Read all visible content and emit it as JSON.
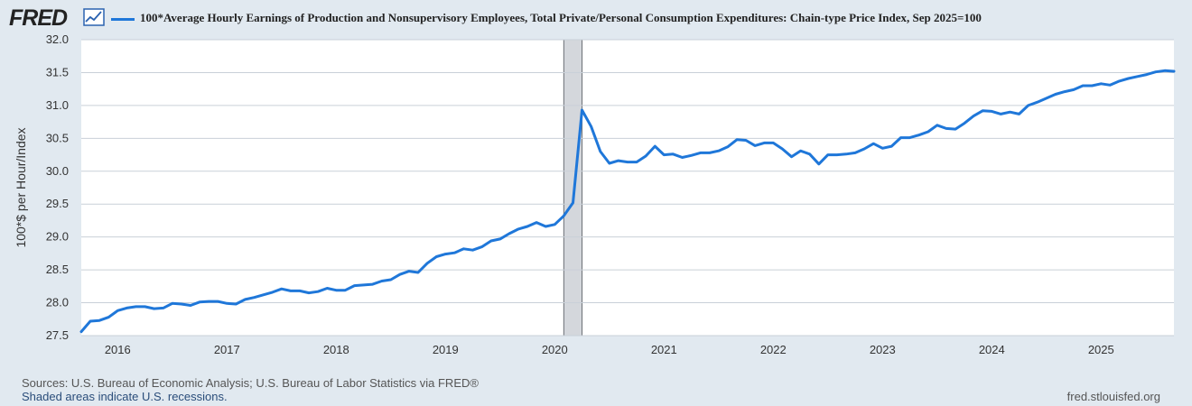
{
  "header": {
    "logo_text": "FRED",
    "legend_label": "100*Average Hourly Earnings of Production and Nonsupervisory Employees, Total Private/Personal Consumption Expenditures: Chain-type Price Index, Sep 2025=100"
  },
  "colors": {
    "series": "#1f77d9",
    "recession": "#d4d7dc",
    "background": "#e1e9f0",
    "plot": "#ffffff"
  },
  "footer": {
    "sources": "Sources: U.S. Bureau of Economic Analysis; U.S. Bureau of Labor Statistics via FRED®",
    "recession_note": "Shaded areas indicate U.S. recessions.",
    "site": "fred.stlouisfed.org"
  },
  "chart_data": {
    "type": "line",
    "title": "100*Average Hourly Earnings of Production and Nonsupervisory Employees, Total Private/Personal Consumption Expenditures: Chain-type Price Index, Sep 2025=100",
    "xlabel": "",
    "ylabel": "100*$ per Hour/Index",
    "ylim": [
      27.5,
      32.0
    ],
    "yticks": [
      27.5,
      28.0,
      28.5,
      29.0,
      29.5,
      30.0,
      30.5,
      31.0,
      31.5,
      32.0
    ],
    "ytick_labels": [
      "27.5",
      "28.0",
      "28.5",
      "29.0",
      "29.5",
      "30.0",
      "30.5",
      "31.0",
      "31.5",
      "32.0"
    ],
    "xlim": [
      2015.667,
      2025.667
    ],
    "xticks": [
      2016,
      2017,
      2018,
      2019,
      2020,
      2021,
      2022,
      2023,
      2024,
      2025
    ],
    "xtick_labels": [
      "2016",
      "2017",
      "2018",
      "2019",
      "2020",
      "2021",
      "2022",
      "2023",
      "2024",
      "2025"
    ],
    "recessions": [
      {
        "start": 2020.083,
        "end": 2020.25
      }
    ],
    "grid": true,
    "series": [
      {
        "name": "100*Average Hourly Earnings of Production and Nonsupervisory Employees, Total Private/Personal Consumption Expenditures: Chain-type Price Index, Sep 2025=100",
        "x": [
          2015.667,
          2015.75,
          2015.833,
          2015.917,
          2016.0,
          2016.083,
          2016.167,
          2016.25,
          2016.333,
          2016.417,
          2016.5,
          2016.583,
          2016.667,
          2016.75,
          2016.833,
          2016.917,
          2017.0,
          2017.083,
          2017.167,
          2017.25,
          2017.333,
          2017.417,
          2017.5,
          2017.583,
          2017.667,
          2017.75,
          2017.833,
          2017.917,
          2018.0,
          2018.083,
          2018.167,
          2018.25,
          2018.333,
          2018.417,
          2018.5,
          2018.583,
          2018.667,
          2018.75,
          2018.833,
          2018.917,
          2019.0,
          2019.083,
          2019.167,
          2019.25,
          2019.333,
          2019.417,
          2019.5,
          2019.583,
          2019.667,
          2019.75,
          2019.833,
          2019.917,
          2020.0,
          2020.083,
          2020.167,
          2020.25,
          2020.333,
          2020.417,
          2020.5,
          2020.583,
          2020.667,
          2020.75,
          2020.833,
          2020.917,
          2021.0,
          2021.083,
          2021.167,
          2021.25,
          2021.333,
          2021.417,
          2021.5,
          2021.583,
          2021.667,
          2021.75,
          2021.833,
          2021.917,
          2022.0,
          2022.083,
          2022.167,
          2022.25,
          2022.333,
          2022.417,
          2022.5,
          2022.583,
          2022.667,
          2022.75,
          2022.833,
          2022.917,
          2023.0,
          2023.083,
          2023.167,
          2023.25,
          2023.333,
          2023.417,
          2023.5,
          2023.583,
          2023.667,
          2023.75,
          2023.833,
          2023.917,
          2024.0,
          2024.083,
          2024.167,
          2024.25,
          2024.333,
          2024.417,
          2024.5,
          2024.583,
          2024.667,
          2024.75,
          2024.833,
          2024.917,
          2025.0,
          2025.083,
          2025.167,
          2025.25,
          2025.333,
          2025.417,
          2025.5,
          2025.583,
          2025.667
        ],
        "values": [
          27.56,
          27.72,
          27.73,
          27.78,
          27.88,
          27.92,
          27.94,
          27.94,
          27.91,
          27.92,
          27.99,
          27.98,
          27.96,
          28.01,
          28.02,
          28.02,
          27.99,
          27.98,
          28.05,
          28.08,
          28.12,
          28.16,
          28.21,
          28.18,
          28.18,
          28.15,
          28.17,
          28.22,
          28.19,
          28.19,
          28.26,
          28.27,
          28.28,
          28.33,
          28.35,
          28.43,
          28.48,
          28.46,
          28.6,
          28.7,
          28.74,
          28.76,
          28.82,
          28.8,
          28.85,
          28.94,
          28.97,
          29.05,
          29.12,
          29.16,
          29.22,
          29.16,
          29.19,
          29.32,
          29.52,
          30.93,
          30.68,
          30.3,
          30.12,
          30.16,
          30.14,
          30.14,
          30.23,
          30.38,
          30.25,
          30.26,
          30.21,
          30.24,
          30.28,
          30.28,
          30.31,
          30.37,
          30.48,
          30.47,
          30.39,
          30.43,
          30.43,
          30.34,
          30.22,
          30.31,
          30.26,
          30.11,
          30.25,
          30.25,
          30.26,
          30.28,
          30.34,
          30.42,
          30.35,
          30.38,
          30.51,
          30.51,
          30.55,
          30.6,
          30.7,
          30.65,
          30.64,
          30.73,
          30.84,
          30.92,
          30.91,
          30.87,
          30.9,
          30.87,
          31.0,
          31.05,
          31.11,
          31.17,
          31.21,
          31.24,
          31.3,
          31.3,
          31.33,
          31.31,
          31.37,
          31.41,
          31.44,
          31.47,
          31.51,
          31.53,
          31.52
        ]
      }
    ]
  }
}
